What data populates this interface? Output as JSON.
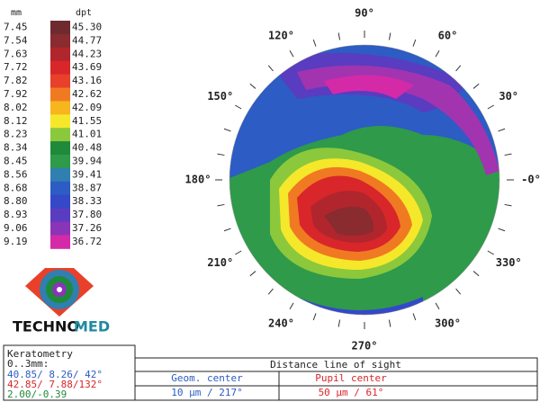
{
  "scale": {
    "mm_header": "mm",
    "dpt_header": "dpt",
    "mm": [
      "7.45",
      "7.54",
      "7.63",
      "7.72",
      "7.82",
      "7.92",
      "8.02",
      "8.12",
      "8.23",
      "8.34",
      "8.45",
      "8.56",
      "8.68",
      "8.80",
      "8.93",
      "9.06",
      "9.19"
    ],
    "dpt": [
      "45.30",
      "44.77",
      "44.23",
      "43.69",
      "43.16",
      "42.62",
      "42.09",
      "41.55",
      "41.01",
      "40.48",
      "39.94",
      "39.41",
      "38.87",
      "38.33",
      "37.80",
      "37.26",
      "36.72"
    ],
    "colors": [
      "#6e2a2e",
      "#8a2b30",
      "#b0262c",
      "#d8262a",
      "#e8402a",
      "#f07a22",
      "#f7b51e",
      "#f5e82a",
      "#8cc83c",
      "#1f8a3a",
      "#2e9a4a",
      "#2f7fb0",
      "#2c5cc4",
      "#3448c8",
      "#5a3cc0",
      "#8a34b8",
      "#d42aa8"
    ]
  },
  "angles": [
    "90°",
    "60°",
    "30°",
    "-0°",
    "330°",
    "300°",
    "270°",
    "240°",
    "210°",
    "180°",
    "150°",
    "120°"
  ],
  "logo": {
    "part1": "TECHNO",
    "part2": "MED"
  },
  "keratometry": {
    "title": "Keratometry",
    "range": "0..3mm:",
    "lines": [
      "40.85/ 8.26/ 42°",
      "42.85/ 7.88/132°",
      "2.00/-0.39"
    ]
  },
  "line_of_sight": {
    "title": "Distance line of sight",
    "geom_label": "Geom. center",
    "pupil_label": "Pupil center",
    "geom_value": "10 µm / 217°",
    "pupil_value": "50 µm / 61°"
  }
}
